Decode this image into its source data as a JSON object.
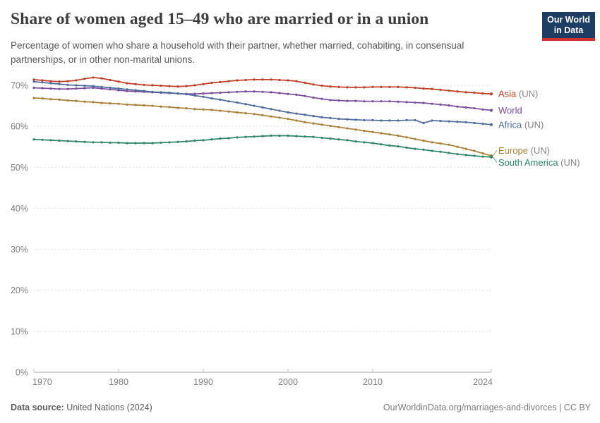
{
  "header": {
    "title": "Share of women aged 15–49 who are married or in a union",
    "subtitle": "Percentage of women who share a household with their partner, whether married, cohabiting, in consensual partnerships, or in other non-marital unions.",
    "logo": {
      "line1": "Our World",
      "line2": "in Data",
      "bg_color": "#1d3d63",
      "accent_color": "#d1342f"
    }
  },
  "chart_data": {
    "type": "line",
    "title": "Share of women aged 15–49 who are married or in a union",
    "xlabel": "",
    "ylabel": "",
    "grid": "horizontal-dashed",
    "legend_position": "right-of-line-ends",
    "ylim": [
      0,
      73
    ],
    "xlim": [
      1970,
      2024
    ],
    "x_tick_values": [
      1970,
      1980,
      1990,
      2000,
      2010,
      2024
    ],
    "x_tick_labels": [
      "1970",
      "1980",
      "1990",
      "2000",
      "2010",
      "2024"
    ],
    "y_tick_values": [
      0,
      10,
      20,
      30,
      40,
      50,
      60,
      70
    ],
    "y_tick_labels": [
      "0%",
      "10%",
      "20%",
      "30%",
      "40%",
      "50%",
      "60%",
      "70%"
    ],
    "x": [
      1970,
      1971,
      1972,
      1973,
      1974,
      1975,
      1976,
      1977,
      1978,
      1979,
      1980,
      1981,
      1982,
      1983,
      1984,
      1985,
      1986,
      1987,
      1988,
      1989,
      1990,
      1991,
      1992,
      1993,
      1994,
      1995,
      1996,
      1997,
      1998,
      1999,
      2000,
      2001,
      2002,
      2003,
      2004,
      2005,
      2006,
      2007,
      2008,
      2009,
      2010,
      2011,
      2012,
      2013,
      2014,
      2015,
      2016,
      2017,
      2018,
      2019,
      2020,
      2021,
      2022,
      2023,
      2024
    ],
    "series": [
      {
        "id": "asia",
        "label": "Asia",
        "suffix": " (UN)",
        "color": "#bf3c26",
        "values": [
          71.4,
          71.2,
          71.0,
          70.9,
          71.0,
          71.2,
          71.6,
          71.9,
          71.7,
          71.3,
          70.9,
          70.5,
          70.3,
          70.1,
          70.0,
          69.9,
          69.8,
          69.7,
          69.8,
          70.0,
          70.3,
          70.6,
          70.8,
          71.0,
          71.2,
          71.3,
          71.4,
          71.4,
          71.4,
          71.3,
          71.2,
          71.0,
          70.6,
          70.2,
          69.9,
          69.7,
          69.6,
          69.5,
          69.5,
          69.5,
          69.6,
          69.6,
          69.6,
          69.6,
          69.5,
          69.4,
          69.2,
          69.1,
          68.9,
          68.7,
          68.5,
          68.3,
          68.2,
          68.0,
          67.9
        ]
      },
      {
        "id": "world",
        "label": "World",
        "suffix": "",
        "color": "#7a4a9c",
        "values": [
          69.4,
          69.3,
          69.2,
          69.1,
          69.1,
          69.2,
          69.3,
          69.4,
          69.2,
          69.0,
          68.8,
          68.6,
          68.5,
          68.4,
          68.3,
          68.2,
          68.1,
          68.0,
          67.9,
          67.9,
          68.0,
          68.1,
          68.2,
          68.3,
          68.4,
          68.5,
          68.5,
          68.4,
          68.3,
          68.1,
          67.9,
          67.7,
          67.4,
          67.0,
          66.7,
          66.4,
          66.3,
          66.2,
          66.2,
          66.1,
          66.1,
          66.1,
          66.1,
          66.0,
          65.9,
          65.8,
          65.7,
          65.5,
          65.3,
          65.1,
          64.8,
          64.6,
          64.4,
          64.1,
          63.9
        ]
      },
      {
        "id": "africa",
        "label": "Africa",
        "suffix": " (UN)",
        "color": "#4c6a9c",
        "values": [
          70.9,
          70.7,
          70.5,
          70.3,
          70.1,
          70.0,
          69.9,
          69.8,
          69.6,
          69.4,
          69.2,
          69.0,
          68.8,
          68.6,
          68.4,
          68.3,
          68.2,
          68.0,
          67.8,
          67.5,
          67.2,
          66.8,
          66.5,
          66.1,
          65.8,
          65.4,
          65.0,
          64.6,
          64.2,
          63.8,
          63.4,
          63.1,
          62.8,
          62.5,
          62.2,
          62.0,
          61.8,
          61.7,
          61.6,
          61.5,
          61.5,
          61.4,
          61.4,
          61.4,
          61.5,
          61.5,
          60.8,
          61.4,
          61.3,
          61.2,
          61.1,
          61.0,
          60.8,
          60.6,
          60.4
        ]
      },
      {
        "id": "europe",
        "label": "Europe",
        "suffix": " (UN)",
        "color": "#a87e35",
        "values": [
          66.9,
          66.8,
          66.6,
          66.5,
          66.3,
          66.2,
          66.0,
          65.9,
          65.7,
          65.6,
          65.5,
          65.3,
          65.2,
          65.1,
          65.0,
          64.8,
          64.7,
          64.5,
          64.4,
          64.2,
          64.1,
          64.0,
          63.8,
          63.6,
          63.4,
          63.2,
          63.0,
          62.7,
          62.4,
          62.1,
          61.8,
          61.4,
          61.0,
          60.7,
          60.4,
          60.1,
          59.8,
          59.5,
          59.2,
          58.9,
          58.6,
          58.3,
          58.0,
          57.7,
          57.3,
          56.9,
          56.5,
          56.1,
          55.8,
          55.5,
          55.0,
          54.5,
          54.0,
          53.4,
          52.8
        ]
      },
      {
        "id": "south-america",
        "label": "South America",
        "suffix": " (UN)",
        "color": "#2c8465",
        "values": [
          56.8,
          56.7,
          56.6,
          56.5,
          56.4,
          56.3,
          56.2,
          56.1,
          56.1,
          56.0,
          56.0,
          55.9,
          55.9,
          55.9,
          55.9,
          56.0,
          56.1,
          56.2,
          56.3,
          56.5,
          56.6,
          56.8,
          57.0,
          57.1,
          57.3,
          57.4,
          57.5,
          57.6,
          57.7,
          57.7,
          57.7,
          57.6,
          57.5,
          57.4,
          57.2,
          57.0,
          56.8,
          56.6,
          56.3,
          56.1,
          55.9,
          55.6,
          55.3,
          55.1,
          54.8,
          54.5,
          54.3,
          54.0,
          53.8,
          53.5,
          53.2,
          53.0,
          52.8,
          52.6,
          52.5
        ]
      }
    ]
  },
  "footer": {
    "data_source_label": "Data source:",
    "data_source_value": " United Nations (2024)",
    "credit": "OurWorldinData.org/marriages-and-divorces | CC BY"
  }
}
